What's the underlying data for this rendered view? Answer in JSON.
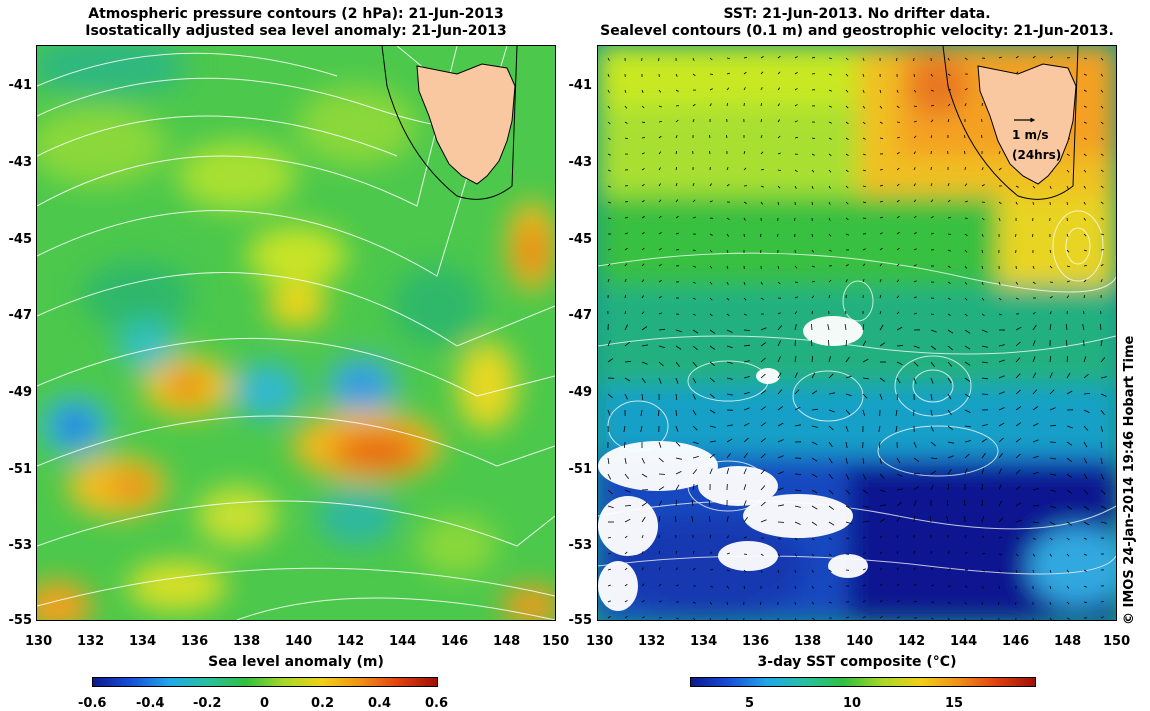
{
  "left_panel": {
    "title_line1": "Atmospheric pressure contours (2 hPa): 21-Jun-2013",
    "title_line2": "Isostatically adjusted sea level anomaly: 21-Jun-2013",
    "x_ticks": [
      "130",
      "132",
      "134",
      "136",
      "138",
      "140",
      "142",
      "144",
      "146",
      "148",
      "150"
    ],
    "y_ticks": [
      "-41",
      "-43",
      "-45",
      "-47",
      "-49",
      "-51",
      "-53",
      "-55"
    ],
    "colorbar_label": "Sea level anomaly (m)",
    "colorbar_ticks": [
      "-0.6",
      "-0.4",
      "-0.2",
      "0",
      "0.2",
      "0.4",
      "0.6"
    ]
  },
  "right_panel": {
    "title_line1": "SST: 21-Jun-2013. No drifter data.",
    "title_line2": "Sealevel contours (0.1 m) and geostrophic velocity: 21-Jun-2013.",
    "x_ticks": [
      "130",
      "132",
      "134",
      "136",
      "138",
      "140",
      "142",
      "144",
      "146",
      "148",
      "150"
    ],
    "y_ticks": [
      "-41",
      "-43",
      "-45",
      "-47",
      "-49",
      "-51",
      "-53",
      "-55"
    ],
    "colorbar_label": "3-day SST composite (°C)",
    "colorbar_ticks": [
      "5",
      "10",
      "15"
    ],
    "arrow_scale_label_1": "1 m/s",
    "arrow_scale_label_2": "(24hrs)"
  },
  "copyright": "© IMOS 24-Jan-2014 19:46 Hobart Time",
  "map": {
    "lon_range": [
      130,
      150
    ],
    "lat_range": [
      -55,
      -40
    ],
    "land_name": "Tasmania",
    "land_color": "#f9c8a0",
    "sla_colorbar_range": [
      -0.6,
      0.6
    ],
    "sst_colorbar_range": [
      2,
      19
    ]
  }
}
